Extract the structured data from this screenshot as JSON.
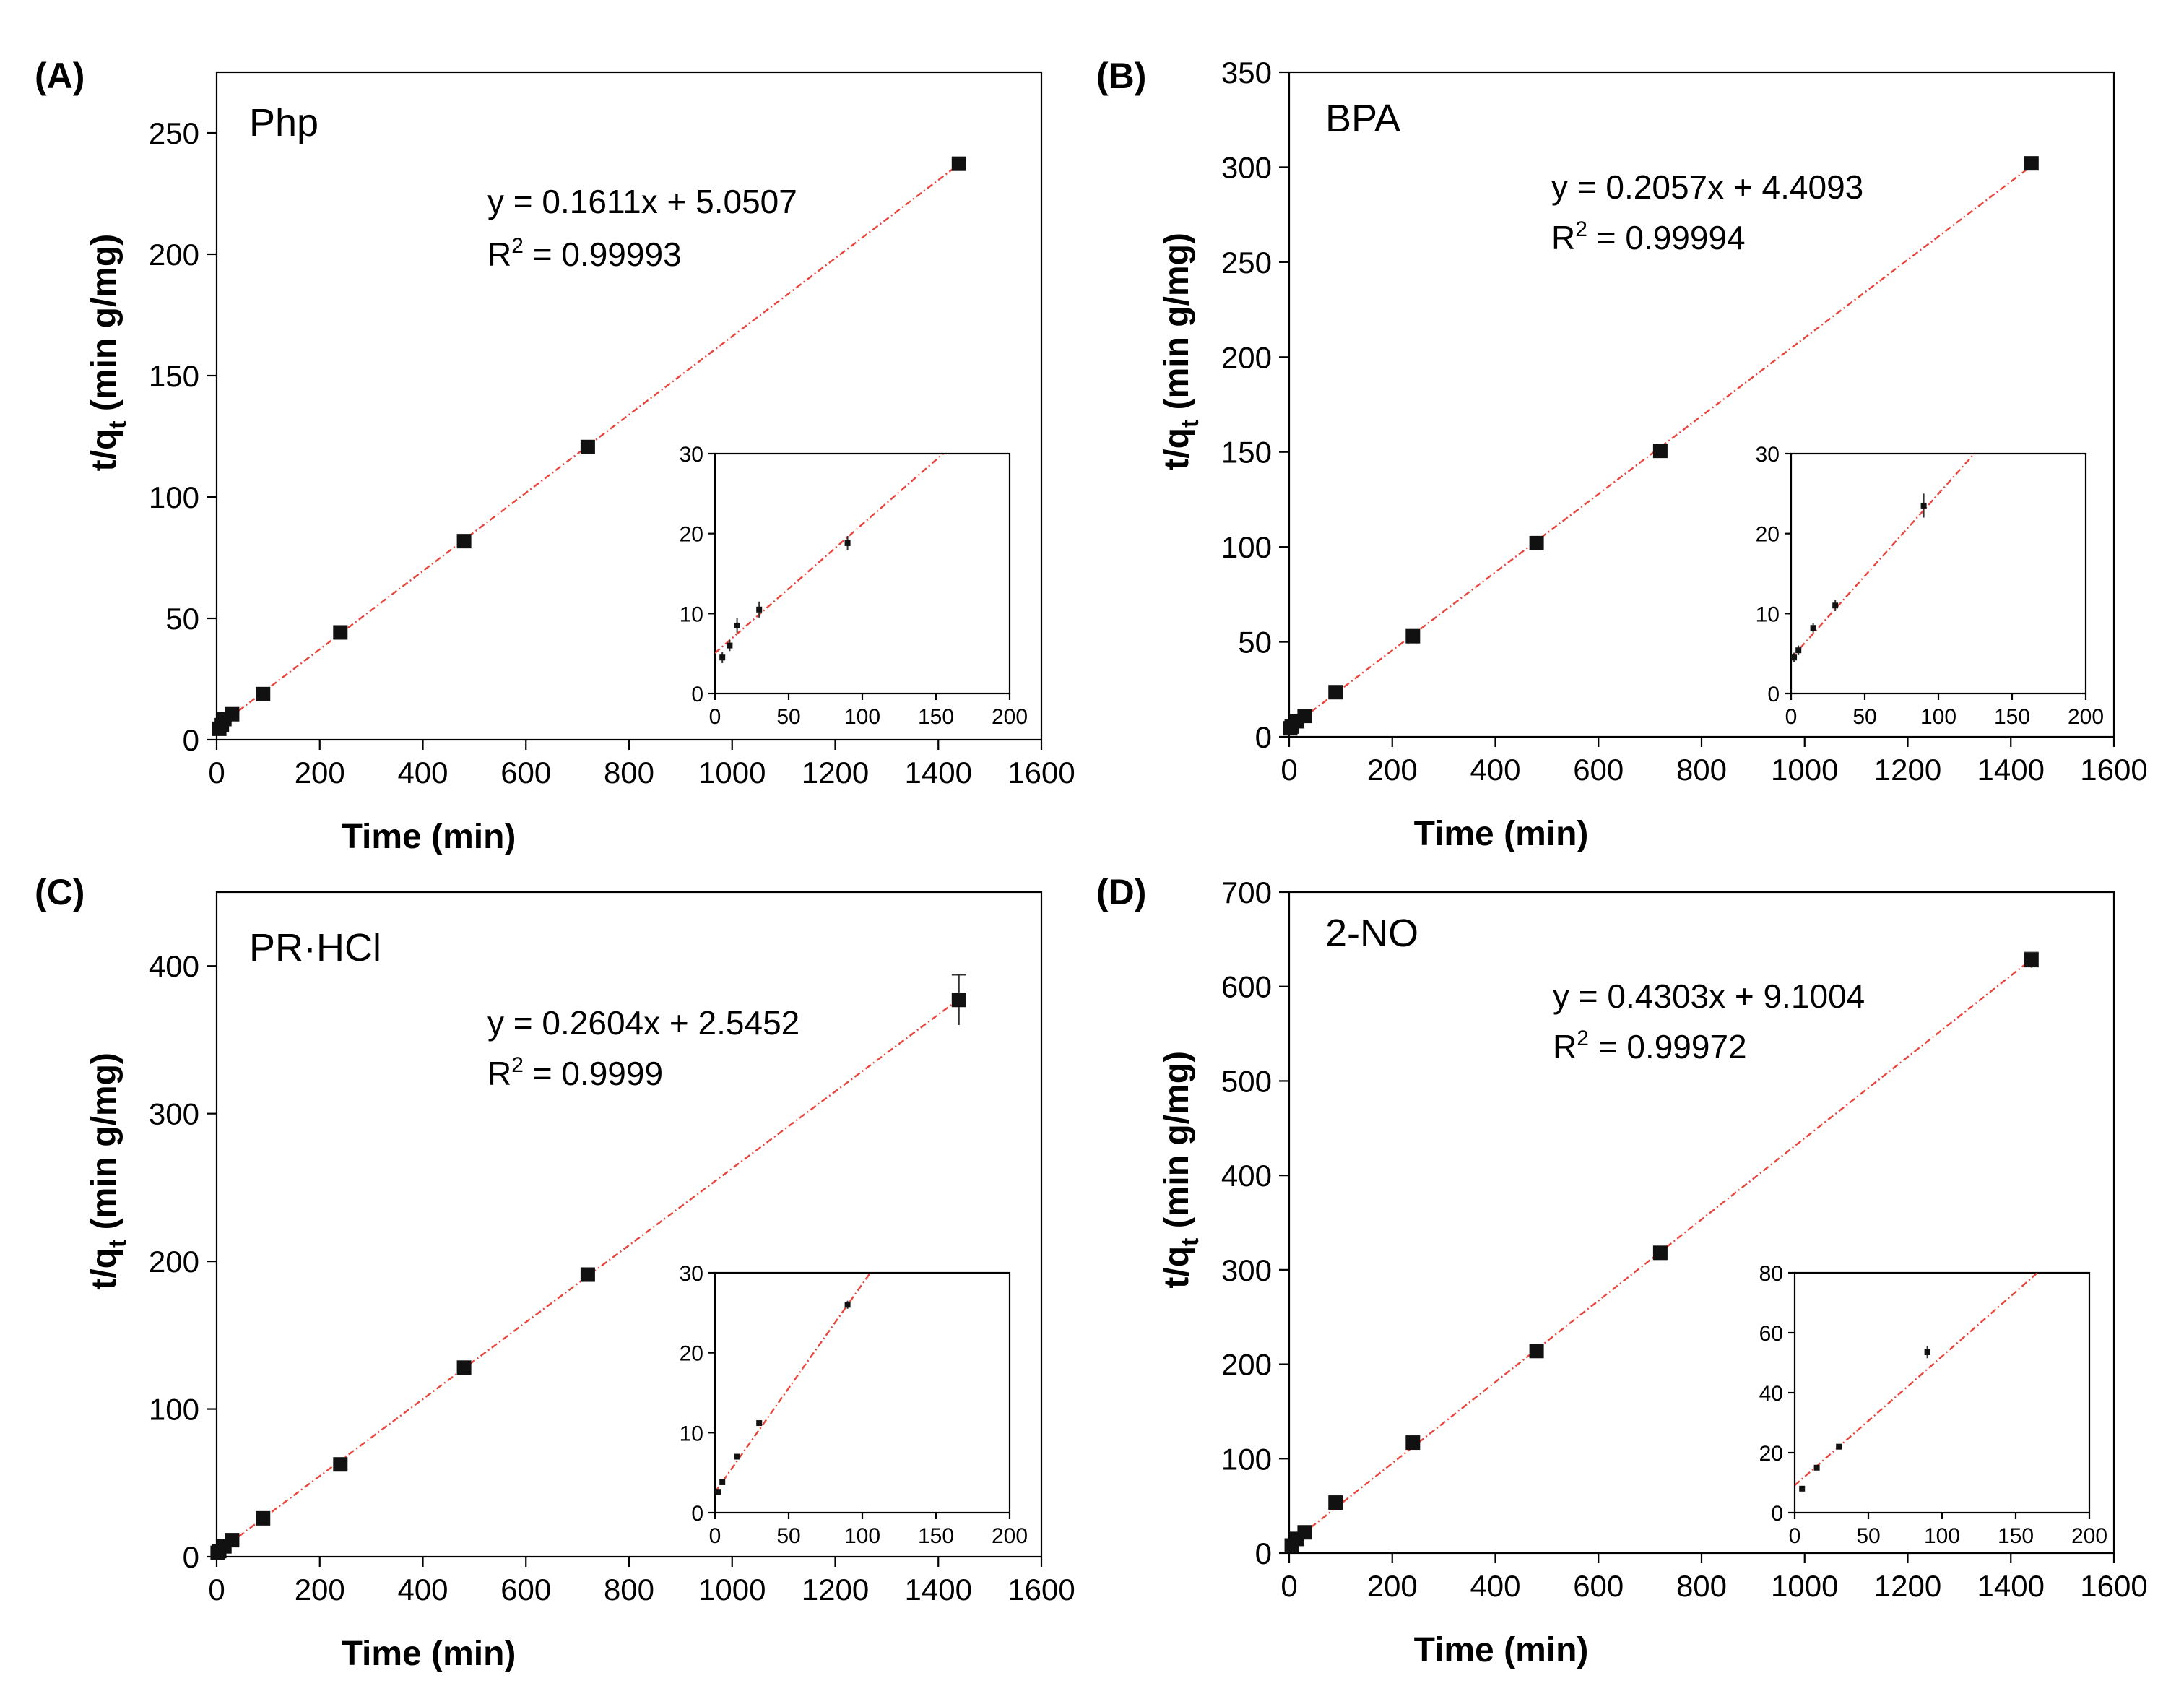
{
  "figure": {
    "xlabel": "Time (min)",
    "ylabel_main": "t/q",
    "ylabel_sub": "t",
    "ylabel_units": " (min g/mg)",
    "r2_prefix": "R",
    "r2_sup": "2"
  },
  "chart_data": [
    {
      "type": "scatter",
      "panel": "(A)",
      "compound": "Php",
      "equation": "y = 0.1611x + 5.0507",
      "r2_value": "= 0.99993",
      "fit": {
        "slope": 0.1611,
        "intercept": 5.0507
      },
      "xlim": [
        0,
        1600
      ],
      "ylim": [
        0,
        275
      ],
      "xticks": [
        0,
        200,
        400,
        600,
        800,
        1000,
        1200,
        1400,
        1600
      ],
      "yticks": [
        0,
        50,
        100,
        150,
        200,
        250
      ],
      "x": [
        5,
        10,
        15,
        30,
        90,
        240,
        480,
        720,
        1440
      ],
      "y": [
        4.5,
        6.0,
        8.5,
        10.5,
        18.8,
        44.2,
        81.8,
        120.6,
        237.3
      ],
      "yerr": [
        0.7,
        0.7,
        0.9,
        1.0,
        0.9,
        0.6,
        0.8,
        1.0,
        1.0
      ],
      "inset": {
        "xlim": [
          0,
          200
        ],
        "ylim": [
          0,
          30
        ],
        "xticks": [
          0,
          50,
          100,
          150,
          200
        ],
        "yticks": [
          0,
          10,
          20,
          30
        ]
      }
    },
    {
      "type": "scatter",
      "panel": "(B)",
      "compound": "BPA",
      "equation": "y = 0.2057x + 4.4093",
      "r2_value": "= 0.99994",
      "fit": {
        "slope": 0.2057,
        "intercept": 4.4093
      },
      "xlim": [
        0,
        1600
      ],
      "ylim": [
        0,
        350
      ],
      "xticks": [
        0,
        200,
        400,
        600,
        800,
        1000,
        1200,
        1400,
        1600
      ],
      "yticks": [
        0,
        50,
        100,
        150,
        200,
        250,
        300,
        350
      ],
      "x": [
        2,
        5,
        15,
        30,
        90,
        240,
        480,
        720,
        1440
      ],
      "y": [
        4.5,
        5.4,
        8.2,
        11.0,
        23.5,
        53.0,
        102.0,
        150.6,
        302.0
      ],
      "yerr": [
        0.6,
        0.6,
        0.6,
        0.7,
        1.5,
        0.8,
        0.9,
        1.0,
        1.0
      ],
      "inset": {
        "xlim": [
          0,
          200
        ],
        "ylim": [
          0,
          30
        ],
        "xticks": [
          0,
          50,
          100,
          150,
          200
        ],
        "yticks": [
          0,
          10,
          20,
          30
        ]
      }
    },
    {
      "type": "scatter",
      "panel": "(C)",
      "compound": "PR·HCl",
      "equation": "y = 0.2604x + 2.5452",
      "r2_value": "= 0.9999",
      "fit": {
        "slope": 0.2604,
        "intercept": 2.5452
      },
      "xlim": [
        0,
        1600
      ],
      "ylim": [
        0,
        450
      ],
      "xticks": [
        0,
        200,
        400,
        600,
        800,
        1000,
        1200,
        1400,
        1600
      ],
      "yticks": [
        0,
        100,
        200,
        300,
        400
      ],
      "x": [
        2,
        5,
        15,
        30,
        90,
        240,
        480,
        720,
        1440
      ],
      "y": [
        2.6,
        3.8,
        7.0,
        11.2,
        26.0,
        62.5,
        128.0,
        191.0,
        377.0
      ],
      "yerr": [
        0.3,
        0.3,
        0.3,
        0.3,
        0.5,
        0.8,
        1.0,
        1.5,
        17.0
      ],
      "inset": {
        "xlim": [
          0,
          200
        ],
        "ylim": [
          0,
          30
        ],
        "xticks": [
          0,
          50,
          100,
          150,
          200
        ],
        "yticks": [
          0,
          10,
          20,
          30
        ]
      }
    },
    {
      "type": "scatter",
      "panel": "(D)",
      "compound": "2-NO",
      "equation": "y = 0.4303x + 9.1004",
      "r2_value": "= 0.99972",
      "fit": {
        "slope": 0.4303,
        "intercept": 9.1004
      },
      "xlim": [
        0,
        1600
      ],
      "ylim": [
        0,
        700
      ],
      "xticks": [
        0,
        200,
        400,
        600,
        800,
        1000,
        1200,
        1400,
        1600
      ],
      "yticks": [
        0,
        100,
        200,
        300,
        400,
        500,
        600,
        700
      ],
      "x": [
        5,
        15,
        30,
        90,
        240,
        480,
        720,
        1440
      ],
      "y": [
        8.0,
        15.0,
        22.0,
        53.5,
        117.0,
        214.0,
        318.0,
        628.0
      ],
      "yerr": [
        0.5,
        0.5,
        0.5,
        2.0,
        1.5,
        2.0,
        3.0,
        8.0
      ],
      "inset": {
        "xlim": [
          0,
          200
        ],
        "ylim": [
          0,
          80
        ],
        "xticks": [
          0,
          50,
          100,
          150,
          200
        ],
        "yticks": [
          0,
          20,
          40,
          60,
          80
        ]
      }
    }
  ]
}
